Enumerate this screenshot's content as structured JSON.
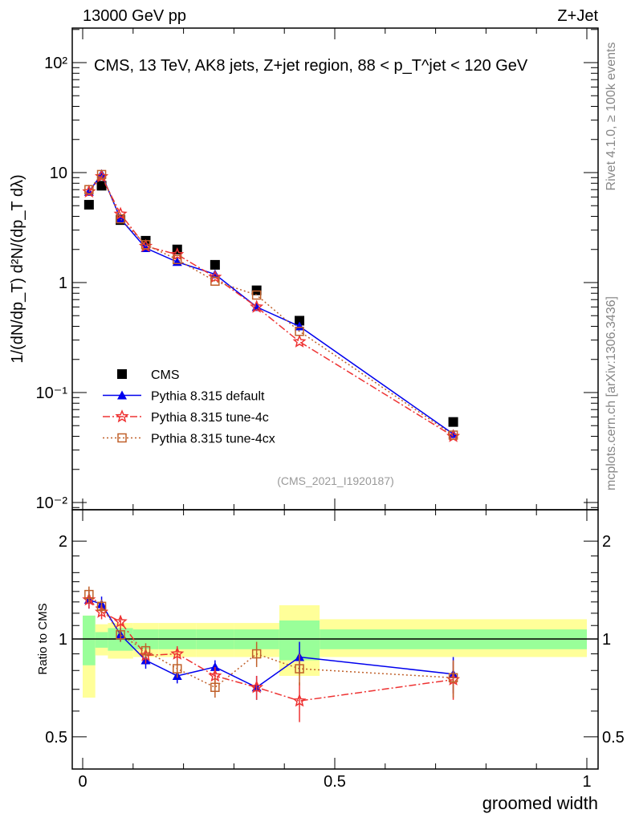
{
  "header": {
    "left": "13000 GeV pp",
    "right": "Z+Jet",
    "side_top": "Rivet 4.1.0, ≥ 100k events",
    "side_bottom": "mcplots.cern.ch [arXiv:1306.3436]"
  },
  "colors": {
    "cms": "#000000",
    "default": "#0000ee",
    "tune4c": "#ee3333",
    "tune4cx": "#c0602a",
    "stat_band": "#99ff99",
    "total_band": "#ffff99"
  },
  "chart_data": [
    {
      "type": "line",
      "title": "CMS, 13 TeV, AK8 jets, Z+jet region, 88 < p_T^jet < 120 GeV",
      "annotation": "(CMS_2021_I1920187)",
      "ylabel": "1/(dN/dp_T) d²N/(dp_T dλ)",
      "xlabel": "groomed width",
      "yscale": "log",
      "ylim": [
        0.0086,
        206
      ],
      "xlim": [
        -0.02,
        1.022
      ],
      "ytick_labels": [
        "10⁻²",
        "10⁻¹",
        "1",
        "10",
        "10²"
      ],
      "xtick_labels": [
        "0",
        "0.5",
        "1"
      ],
      "legend_position": "bottom-left",
      "bin_edges": [
        0,
        0.025,
        0.05,
        0.1,
        0.15,
        0.225,
        0.3,
        0.39,
        0.47,
        1.0
      ],
      "x": [
        0.0125,
        0.0375,
        0.075,
        0.125,
        0.1875,
        0.2625,
        0.345,
        0.43,
        0.735
      ],
      "series": [
        {
          "name": "CMS",
          "key": "cms",
          "values": [
            5.1,
            7.6,
            3.7,
            2.4,
            2.0,
            1.45,
            0.85,
            0.45,
            0.054
          ]
        },
        {
          "name": "Pythia 8.315 default",
          "key": "default",
          "values": [
            6.7,
            9.7,
            3.8,
            2.06,
            1.54,
            1.19,
            0.6,
            0.4,
            0.042
          ]
        },
        {
          "name": "Pythia 8.315 tune-4c",
          "key": "tune4c",
          "values": [
            6.7,
            9.2,
            4.2,
            2.14,
            1.8,
            1.12,
            0.6,
            0.29,
            0.04
          ]
        },
        {
          "name": "Pythia 8.315 tune-4cx",
          "key": "tune4cx",
          "values": [
            7.0,
            9.6,
            3.8,
            2.21,
            1.62,
            1.03,
            0.77,
            0.36,
            0.041
          ]
        }
      ]
    },
    {
      "type": "line",
      "ylabel": "Ratio to CMS",
      "xlabel": "groomed width",
      "yscale": "log",
      "ylim": [
        0.4,
        2.5
      ],
      "ytick_labels": [
        "0.5",
        "1",
        "2"
      ],
      "stat_band": [
        [
          0.83,
          1.18
        ],
        [
          0.94,
          1.05
        ],
        [
          0.92,
          1.08
        ],
        [
          0.93,
          1.07
        ],
        [
          0.93,
          1.07
        ],
        [
          0.93,
          1.07
        ],
        [
          0.93,
          1.07
        ],
        [
          0.86,
          1.14
        ],
        [
          0.93,
          1.07
        ]
      ],
      "total_band": [
        [
          0.66,
          1.18
        ],
        [
          0.89,
          1.11
        ],
        [
          0.87,
          1.12
        ],
        [
          0.88,
          1.12
        ],
        [
          0.88,
          1.12
        ],
        [
          0.88,
          1.12
        ],
        [
          0.88,
          1.12
        ],
        [
          0.77,
          1.27
        ],
        [
          0.88,
          1.15
        ]
      ],
      "series": [
        {
          "name": "Pythia 8.315 default",
          "key": "default",
          "values": [
            1.32,
            1.28,
            1.03,
            0.86,
            0.77,
            0.82,
            0.71,
            0.88,
            0.78
          ],
          "err": [
            0.08,
            0.07,
            0.05,
            0.05,
            0.04,
            0.04,
            0.06,
            0.1,
            0.1
          ]
        },
        {
          "name": "Pythia 8.315 tune-4c",
          "key": "tune4c",
          "values": [
            1.32,
            1.21,
            1.13,
            0.89,
            0.9,
            0.77,
            0.71,
            0.645,
            0.75
          ],
          "err": [
            0.08,
            0.06,
            0.05,
            0.05,
            0.05,
            0.05,
            0.06,
            0.09,
            0.1
          ]
        },
        {
          "name": "Pythia 8.315 tune-4cx",
          "key": "tune4cx",
          "values": [
            1.37,
            1.26,
            1.03,
            0.92,
            0.81,
            0.71,
            0.9,
            0.81,
            0.76
          ],
          "err": [
            0.08,
            0.06,
            0.05,
            0.05,
            0.05,
            0.05,
            0.08,
            0.09,
            0.1
          ]
        }
      ]
    }
  ]
}
